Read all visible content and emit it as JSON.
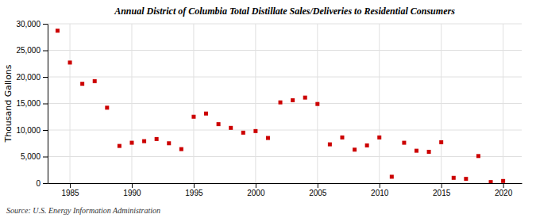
{
  "chart_data": {
    "type": "scatter",
    "title": "Annual District of Columbia Total Distillate Sales/Deliveries to Residential Consumers",
    "ylabel": "Thousand Gallons",
    "source": "Source: U.S. Energy Information Administration",
    "x": [
      1984,
      1985,
      1986,
      1987,
      1988,
      1989,
      1990,
      1991,
      1992,
      1993,
      1994,
      1995,
      1996,
      1997,
      1998,
      1999,
      2000,
      2001,
      2002,
      2003,
      2004,
      2005,
      2006,
      2007,
      2008,
      2009,
      2010,
      2011,
      2012,
      2013,
      2014,
      2015,
      2016,
      2017,
      2018,
      2019,
      2020
    ],
    "values": [
      28700,
      22700,
      18700,
      19200,
      14200,
      7000,
      7600,
      7900,
      8300,
      7500,
      6400,
      12500,
      13100,
      11100,
      10400,
      9500,
      9800,
      8500,
      15200,
      15600,
      16100,
      14900,
      7300,
      8600,
      6300,
      7100,
      8600,
      1200,
      7600,
      6100,
      5900,
      7700,
      1000,
      800,
      5100,
      200,
      400
    ],
    "color": "#cc0000",
    "marker": "square",
    "xlim": [
      1983.2,
      2021.5
    ],
    "xticks": [
      1985,
      1990,
      1995,
      2000,
      2005,
      2010,
      2015,
      2020
    ],
    "ylim": [
      0,
      30000
    ],
    "yticks": [
      0,
      {
        "value": 5000,
        "label": "5,000"
      },
      {
        "value": 10000,
        "label": "10,000"
      },
      {
        "value": 15000,
        "label": "15,000"
      },
      {
        "value": 20000,
        "label": "20,000"
      },
      {
        "value": 25000,
        "label": "25,000"
      },
      {
        "value": 30000,
        "label": "30,000"
      }
    ],
    "grid": true
  }
}
